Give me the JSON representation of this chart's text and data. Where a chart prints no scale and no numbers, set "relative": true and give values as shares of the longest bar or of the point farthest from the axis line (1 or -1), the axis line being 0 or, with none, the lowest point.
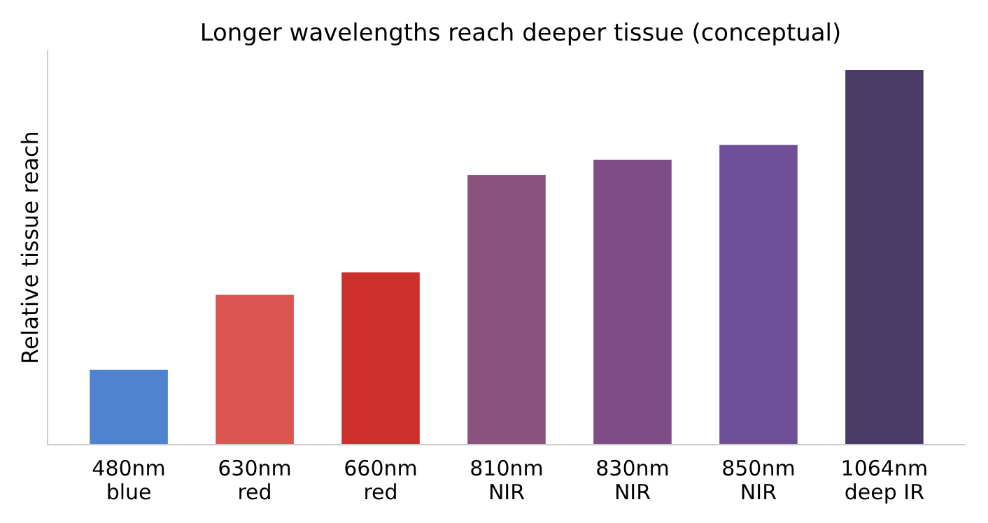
{
  "chart_data": {
    "type": "bar",
    "title": "Longer wavelengths reach deeper tissue (conceptual)",
    "ylabel": "Relative tissue reach",
    "relative": true,
    "categories": [
      "480nm\nblue",
      "630nm\nred",
      "660nm\nred",
      "810nm\nNIR",
      "830nm\nNIR",
      "850nm\nNIR",
      "1064nm\ndeep IR"
    ],
    "values": [
      0.2,
      0.4,
      0.46,
      0.72,
      0.76,
      0.8,
      1
    ],
    "colors": [
      "#4f82cf",
      "#dc5550",
      "#cb302d",
      "#8a527e",
      "#7f4d87",
      "#6f4f97",
      "#4a3b66"
    ]
  }
}
